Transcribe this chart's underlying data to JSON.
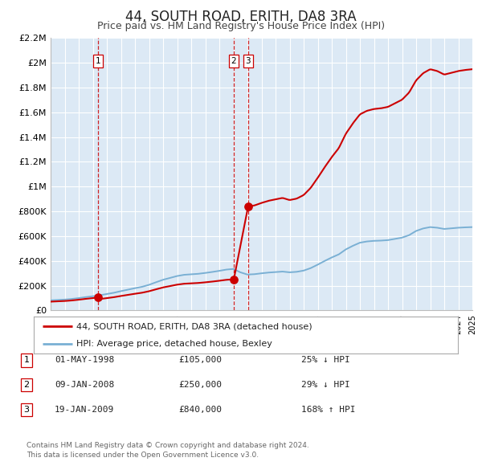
{
  "title": "44, SOUTH ROAD, ERITH, DA8 3RA",
  "subtitle": "Price paid vs. HM Land Registry's House Price Index (HPI)",
  "background_color": "#ffffff",
  "plot_bg_color": "#dce9f5",
  "grid_color": "#ffffff",
  "hpi_line_color": "#7ab0d4",
  "price_line_color": "#cc0000",
  "ylim": [
    0,
    2200000
  ],
  "yticks": [
    0,
    200000,
    400000,
    600000,
    800000,
    1000000,
    1200000,
    1400000,
    1600000,
    1800000,
    2000000,
    2200000
  ],
  "ytick_labels": [
    "£0",
    "£200K",
    "£400K",
    "£600K",
    "£800K",
    "£1M",
    "£1.2M",
    "£1.4M",
    "£1.6M",
    "£1.8M",
    "£2M",
    "£2.2M"
  ],
  "sale_dates_num": [
    1998.36,
    2008.03,
    2009.05
  ],
  "sale_prices": [
    105000,
    250000,
    840000
  ],
  "sale_labels": [
    "1",
    "2",
    "3"
  ],
  "vline_color": "#cc0000",
  "marker_color": "#cc0000",
  "legend_label_red": "44, SOUTH ROAD, ERITH, DA8 3RA (detached house)",
  "legend_label_blue": "HPI: Average price, detached house, Bexley",
  "table_entries": [
    {
      "num": "1",
      "date": "01-MAY-1998",
      "price": "£105,000",
      "pct": "25% ↓ HPI"
    },
    {
      "num": "2",
      "date": "09-JAN-2008",
      "price": "£250,000",
      "pct": "29% ↓ HPI"
    },
    {
      "num": "3",
      "date": "19-JAN-2009",
      "price": "£840,000",
      "pct": "168% ↑ HPI"
    }
  ],
  "footnote1": "Contains HM Land Registry data © Crown copyright and database right 2024.",
  "footnote2": "This data is licensed under the Open Government Licence v3.0.",
  "xmin": 1995,
  "xmax": 2025
}
